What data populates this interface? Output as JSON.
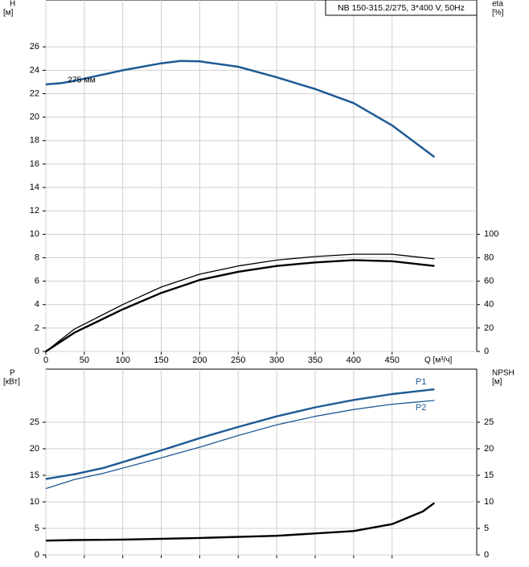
{
  "chart_data": [
    {
      "type": "line",
      "title": "NB 150-315.2/275, 3*400 V, 50Hz",
      "y_label": [
        "H",
        "[м]"
      ],
      "y2_label": [
        "eta",
        "[%]"
      ],
      "x_label": "Q [м³/ч]",
      "annotation": "275 мм",
      "xlim": [
        0,
        560
      ],
      "xticks": [
        0,
        50,
        100,
        150,
        200,
        250,
        300,
        350,
        400,
        450
      ],
      "ylim": [
        0,
        30
      ],
      "yticks": [
        0,
        2,
        4,
        6,
        8,
        10,
        12,
        14,
        16,
        18,
        20,
        22,
        24,
        26
      ],
      "y2lim": [
        0,
        300
      ],
      "y2ticks": [
        0,
        20,
        40,
        60,
        80,
        100
      ],
      "grid": true,
      "xtick_labels": true,
      "series": [
        {
          "color": "#1f5a96",
          "linewidth": 2.5,
          "x": [
            0,
            20,
            37,
            100,
            150,
            175,
            200,
            250,
            300,
            350,
            400,
            450,
            505
          ],
          "values": [
            22.8,
            22.9,
            23.1,
            24.0,
            24.6,
            24.8,
            24.76,
            24.3,
            23.4,
            22.4,
            21.2,
            19.3,
            16.6
          ]
        },
        {
          "color": "#000000",
          "linewidth": 1.3,
          "axis": "y2",
          "x": [
            0,
            37,
            100,
            150,
            200,
            250,
            300,
            350,
            400,
            450,
            505
          ],
          "values": [
            0,
            19,
            40,
            55,
            66,
            73,
            78,
            81,
            83,
            83,
            79
          ]
        },
        {
          "color": "#000000",
          "linewidth": 2.4,
          "axis": "y2",
          "x": [
            0,
            37,
            100,
            150,
            200,
            250,
            300,
            350,
            400,
            450,
            505
          ],
          "values": [
            0,
            16,
            36,
            50,
            61,
            68,
            73,
            76,
            78,
            77,
            73
          ]
        }
      ]
    },
    {
      "type": "line",
      "y_label": [
        "P",
        "[кВт]"
      ],
      "y2_label": [
        "NPSH",
        "[м]"
      ],
      "xlim": [
        0,
        560
      ],
      "xticks": [
        0,
        50,
        100,
        150,
        200,
        250,
        300,
        350,
        400,
        450
      ],
      "ylim": [
        0,
        35
      ],
      "yticks": [
        0,
        5,
        10,
        15,
        20,
        25
      ],
      "y2lim": [
        0,
        35
      ],
      "y2ticks": [
        0,
        5,
        10,
        15,
        20,
        25
      ],
      "grid": true,
      "xtick_labels": false,
      "series": [
        {
          "name": "P1",
          "color": "#1f5a96",
          "linewidth": 2.4,
          "x": [
            0,
            37,
            75,
            150,
            200,
            250,
            300,
            350,
            400,
            450,
            505
          ],
          "values": [
            14.3,
            15.2,
            16.4,
            19.7,
            22.0,
            24.1,
            26.1,
            27.8,
            29.2,
            30.3,
            31.2
          ]
        },
        {
          "name": "P2",
          "color": "#1f5a96",
          "linewidth": 1.3,
          "x": [
            0,
            37,
            75,
            150,
            200,
            250,
            300,
            350,
            400,
            450,
            505
          ],
          "values": [
            12.5,
            14.2,
            15.4,
            18.3,
            20.3,
            22.5,
            24.5,
            26.1,
            27.4,
            28.4,
            29.1
          ]
        },
        {
          "color": "#000000",
          "linewidth": 2.4,
          "axis": "y2",
          "x": [
            0,
            37,
            100,
            200,
            300,
            400,
            450,
            490,
            505
          ],
          "values": [
            2.7,
            2.8,
            2.9,
            3.2,
            3.6,
            4.5,
            5.8,
            8.2,
            9.8
          ]
        }
      ]
    }
  ]
}
